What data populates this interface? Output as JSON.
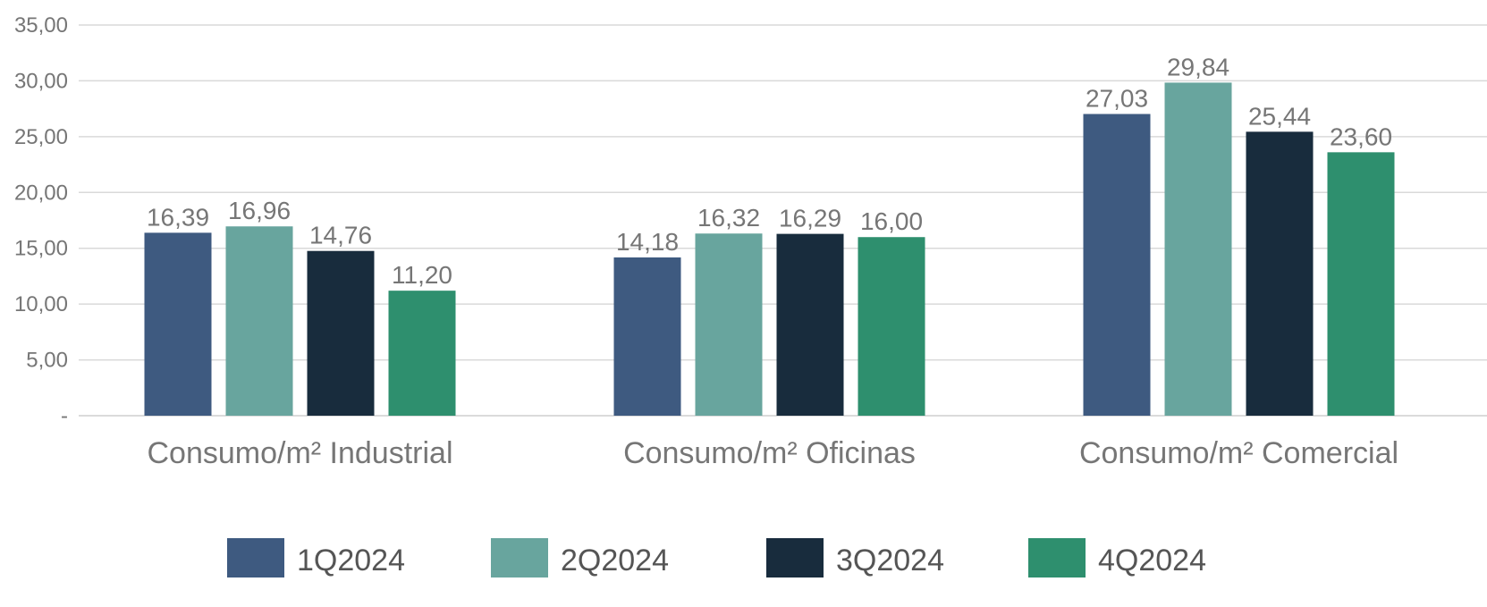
{
  "chart_data": {
    "type": "bar",
    "categories": [
      "Consumo/m² Industrial",
      "Consumo/m² Oficinas",
      "Consumo/m² Comercial"
    ],
    "series": [
      {
        "name": "1Q2024",
        "color": "#3E5A80",
        "values": [
          16.39,
          14.18,
          27.03
        ],
        "labels": [
          "16,39",
          "14,18",
          "27,03"
        ]
      },
      {
        "name": "2Q2024",
        "color": "#68A59E",
        "values": [
          16.96,
          16.32,
          29.84
        ],
        "labels": [
          "16,96",
          "16,32",
          "29,84"
        ]
      },
      {
        "name": "3Q2024",
        "color": "#182C3D",
        "values": [
          14.76,
          16.29,
          25.44
        ],
        "labels": [
          "14,76",
          "16,29",
          "25,44"
        ]
      },
      {
        "name": "4Q2024",
        "color": "#2E8F6E",
        "values": [
          11.2,
          16.0,
          23.6
        ],
        "labels": [
          "11,20",
          "16,00",
          "23,60"
        ]
      }
    ],
    "ylim": [
      0,
      35
    ],
    "yticks": [
      0,
      5,
      10,
      15,
      20,
      25,
      30,
      35
    ],
    "ytick_labels": [
      "-",
      "5,00",
      "10,00",
      "15,00",
      "20,00",
      "25,00",
      "30,00",
      "35,00"
    ],
    "grid": true,
    "legend_position": "bottom",
    "title": "",
    "xlabel": "",
    "ylabel": ""
  }
}
